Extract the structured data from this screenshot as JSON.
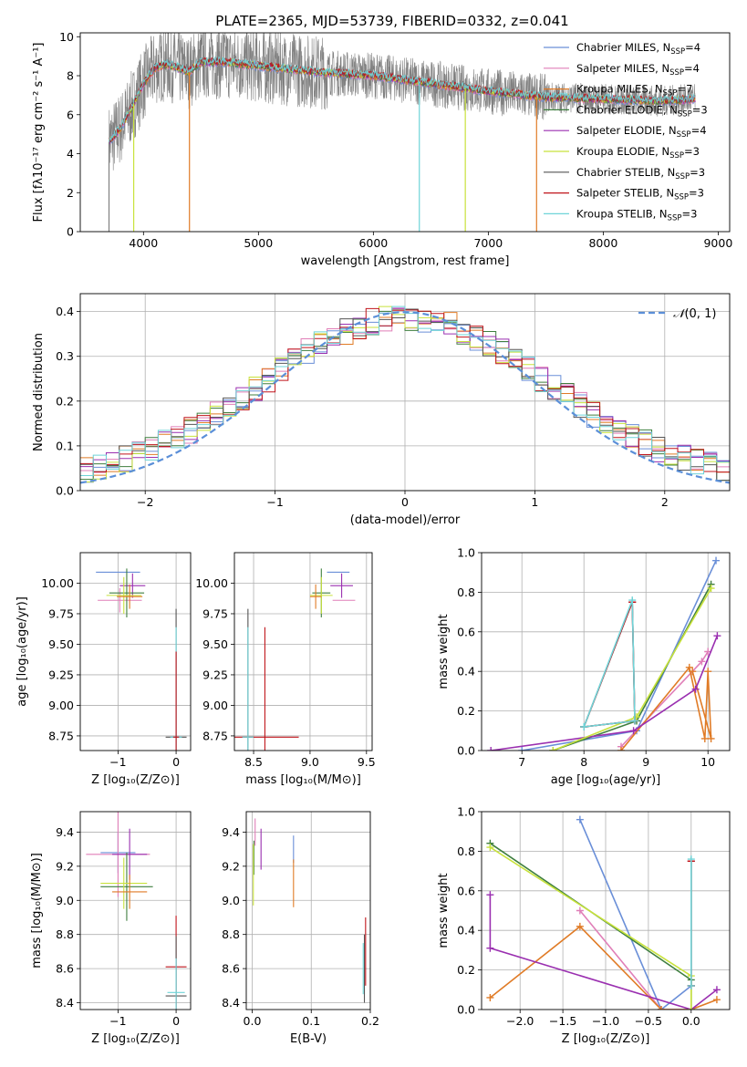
{
  "figure": {
    "title": "PLATE=2365, MJD=53739, FIBERID=0332, z=0.041"
  },
  "series_styles": [
    {
      "name": "Chabrier MILES, N$_{SSP}$=4",
      "label_main": "Chabrier MILES, N",
      "label_sub": "SSP",
      "label_tail": "=4",
      "color": "#6a8fd8"
    },
    {
      "name": "Salpeter MILES, N$_{SSP}$=4",
      "label_main": "Salpeter MILES, N",
      "label_sub": "SSP",
      "label_tail": "=4",
      "color": "#e07fb8"
    },
    {
      "name": "Kroupa MILES, N$_{SSP}$=7",
      "label_main": "Kroupa MILES, N",
      "label_sub": "SSP",
      "label_tail": "=7",
      "color": "#e07b26"
    },
    {
      "name": "Chabrier ELODIE, N$_{SSP}$=3",
      "label_main": "Chabrier ELODIE, N",
      "label_sub": "SSP",
      "label_tail": "=3",
      "color": "#3f7f3f"
    },
    {
      "name": "Salpeter ELODIE, N$_{SSP}$=4",
      "label_main": "Salpeter ELODIE, N",
      "label_sub": "SSP",
      "label_tail": "=4",
      "color": "#9a2fb0"
    },
    {
      "name": "Kroupa ELODIE, N$_{SSP}$=3",
      "label_main": "Kroupa ELODIE, N",
      "label_sub": "SSP",
      "label_tail": "=3",
      "color": "#c8e23c"
    },
    {
      "name": "Chabrier STELIB, N$_{SSP}$=3",
      "label_main": "Chabrier STELIB, N",
      "label_sub": "SSP",
      "label_tail": "=3",
      "color": "#555555"
    },
    {
      "name": "Salpeter STELIB, N$_{SSP}$=3",
      "label_main": "Salpeter STELIB, N",
      "label_sub": "SSP",
      "label_tail": "=3",
      "color": "#c0141b"
    },
    {
      "name": "Kroupa STELIB, N$_{SSP}$=3",
      "label_main": "Kroupa STELIB, N",
      "label_sub": "SSP",
      "label_tail": "=3",
      "color": "#6fd4d8"
    }
  ],
  "chart_data": [
    {
      "id": "spectrum",
      "type": "line",
      "xlabel": "wavelength [Angstrom, rest frame]",
      "ylabel": "Flux [f$_\\lambda$10$^{-17}$ erg cm$^{-2}$ s$^{-1}$ A$^{-1}$]",
      "xlim": [
        3450,
        9100
      ],
      "ylim": [
        0,
        10.2
      ],
      "xticks": [
        4000,
        5000,
        6000,
        7000,
        8000,
        9000
      ],
      "yticks": [
        0,
        2,
        4,
        6,
        8,
        10
      ],
      "data_color": "#808080",
      "data_range": [
        3700,
        8800
      ],
      "model_continuum": {
        "x": [
          3700,
          3800,
          3900,
          4000,
          4100,
          4200,
          4300,
          4400,
          4500,
          4700,
          5000,
          5500,
          6000,
          6500,
          7000,
          7500,
          8000,
          8500,
          8800
        ],
        "y": [
          4.6,
          5.3,
          6.4,
          7.6,
          8.4,
          8.6,
          8.4,
          8.2,
          8.7,
          8.7,
          8.5,
          8.2,
          8.0,
          7.6,
          7.2,
          6.9,
          6.8,
          6.7,
          6.8
        ]
      },
      "dips": [
        {
          "x": 3915,
          "y": 0.0,
          "color": "#c8e23c"
        },
        {
          "x": 4400,
          "y": 0.0,
          "color": "#e07b26"
        },
        {
          "x": 6400,
          "y": 0.0,
          "color": "#6fd4d8"
        },
        {
          "x": 6800,
          "y": 0.0,
          "color": "#c8e23c"
        },
        {
          "x": 7420,
          "y": 0.0,
          "color": "#e07b26"
        },
        {
          "x": 3700,
          "y": 0.0,
          "color": "#808080"
        }
      ]
    },
    {
      "id": "residuals",
      "type": "line",
      "xlabel": "(data-model)/error",
      "ylabel": "Normed distribution",
      "xlim": [
        -2.5,
        2.5
      ],
      "ylim": [
        0,
        0.44
      ],
      "xticks": [
        -2,
        -1,
        0,
        1,
        2
      ],
      "xtick_labels": [
        "−2",
        "−1",
        "0",
        "1",
        "2"
      ],
      "yticks": [
        0.0,
        0.1,
        0.2,
        0.3,
        0.4
      ],
      "ytick_labels": [
        "0.0",
        "0.1",
        "0.2",
        "0.3",
        "0.4"
      ],
      "reference_label": "$\\mathcal{N}(0,1)$",
      "reference_text": "(0, 1)",
      "reference_color": "#5b8fd8",
      "bins": [
        -2.5,
        2.5,
        50
      ]
    },
    {
      "id": "age_vs_Z",
      "type": "scatter",
      "xlabel": "Z [log$_{10}$(Z/Z$_\\odot$)]",
      "ylabel": "age  [log$_{10}$(age/yr)]",
      "xlim": [
        -1.65,
        0.25
      ],
      "ylim": [
        8.63,
        10.25
      ],
      "xticks": [
        -1,
        0
      ],
      "xtick_labels": [
        "−1",
        "0"
      ],
      "yticks": [
        8.75,
        9.0,
        9.25,
        9.5,
        9.75,
        10.0
      ],
      "ytick_labels": [
        "8.75",
        "9.00",
        "9.25",
        "9.50",
        "9.75",
        "10.00"
      ],
      "points": [
        {
          "x": -1.0,
          "y": 10.09,
          "xe": 0.38,
          "ye": 0.0,
          "s": 0
        },
        {
          "x": -0.97,
          "y": 9.86,
          "xe": 0.38,
          "ye": 0.1,
          "s": 1
        },
        {
          "x": -0.75,
          "y": 9.98,
          "xe": 0.22,
          "ye": 0.1,
          "s": 4
        },
        {
          "x": -0.85,
          "y": 9.92,
          "xe": 0.3,
          "ye": 0.2,
          "s": 3
        },
        {
          "x": -0.9,
          "y": 9.9,
          "xe": 0.3,
          "ye": 0.15,
          "s": 5
        },
        {
          "x": -0.8,
          "y": 9.89,
          "xe": 0.22,
          "ye": 0.1,
          "s": 2
        },
        {
          "x": 0.0,
          "y": 8.74,
          "xe": 0.18,
          "ye": 1.05,
          "s": 6
        },
        {
          "x": 0.0,
          "y": 8.74,
          "xe": 0.1,
          "ye": 0.9,
          "s": 8
        },
        {
          "x": 0.0,
          "y": 8.74,
          "xe": 0.05,
          "ye": 0.7,
          "s": 7
        }
      ]
    },
    {
      "id": "age_vs_mass",
      "type": "scatter",
      "xlabel": "mass [log$_{10}$(M/M$_\\odot$)]",
      "ylabel": "",
      "xlim": [
        8.33,
        9.55
      ],
      "ylim": [
        8.63,
        10.25
      ],
      "xticks": [
        8.5,
        9.0,
        9.5
      ],
      "xtick_labels": [
        "8.5",
        "9.0",
        "9.5"
      ],
      "yticks": [
        8.75,
        9.0,
        9.25,
        9.5,
        9.75,
        10.0
      ],
      "ytick_labels": [
        "8.75",
        "9.00",
        "9.25",
        "9.50",
        "9.75",
        "10.00"
      ],
      "points": [
        {
          "x": 9.25,
          "y": 10.09,
          "xe": 0.1,
          "ye": 0.0,
          "s": 0
        },
        {
          "x": 9.3,
          "y": 9.86,
          "xe": 0.1,
          "ye": 0.0,
          "s": 1
        },
        {
          "x": 9.28,
          "y": 9.98,
          "xe": 0.1,
          "ye": 0.1,
          "s": 4
        },
        {
          "x": 9.1,
          "y": 9.92,
          "xe": 0.08,
          "ye": 0.2,
          "s": 3
        },
        {
          "x": 9.1,
          "y": 9.9,
          "xe": 0.1,
          "ye": 0.15,
          "s": 5
        },
        {
          "x": 9.05,
          "y": 9.89,
          "xe": 0.05,
          "ye": 0.1,
          "s": 2
        },
        {
          "x": 8.45,
          "y": 8.74,
          "xe": 0.05,
          "ye": 1.05,
          "s": 6
        },
        {
          "x": 8.6,
          "y": 8.74,
          "xe": 0.3,
          "ye": 0.9,
          "s": 7
        },
        {
          "x": 8.45,
          "y": 8.74,
          "xe": 0.05,
          "ye": 0.9,
          "s": 8
        }
      ]
    },
    {
      "id": "weight_vs_age",
      "type": "line",
      "xlabel": "age  [log$_{10}$(age/yr)]",
      "ylabel": "mass weight",
      "xlim": [
        6.35,
        10.35
      ],
      "ylim": [
        0,
        1.0
      ],
      "xticks": [
        7,
        8,
        9,
        10
      ],
      "xtick_labels": [
        "7",
        "8",
        "9",
        "10"
      ],
      "yticks": [
        0.0,
        0.2,
        0.4,
        0.6,
        0.8,
        1.0
      ],
      "ytick_labels": [
        "0.0",
        "0.2",
        "0.4",
        "0.6",
        "0.8",
        "1.0"
      ],
      "series": [
        {
          "s": 0,
          "x": [
            7.0,
            8.85,
            10.13
          ],
          "y": [
            0.0,
            0.1,
            0.96
          ]
        },
        {
          "s": 1,
          "x": [
            8.6,
            9.9,
            10.0
          ],
          "y": [
            0.02,
            0.45,
            0.5
          ]
        },
        {
          "s": 2,
          "x": [
            8.6,
            9.7,
            9.95,
            10.0,
            10.05,
            9.75
          ],
          "y": [
            0.0,
            0.42,
            0.06,
            0.4,
            0.06,
            0.4
          ]
        },
        {
          "s": 3,
          "x": [
            7.5,
            8.85,
            10.05
          ],
          "y": [
            0.0,
            0.15,
            0.84
          ]
        },
        {
          "s": 4,
          "x": [
            6.5,
            8.8,
            9.8,
            10.15
          ],
          "y": [
            0.0,
            0.1,
            0.31,
            0.58
          ]
        },
        {
          "s": 5,
          "x": [
            7.5,
            8.85,
            10.05
          ],
          "y": [
            0.0,
            0.17,
            0.82
          ]
        },
        {
          "s": 6,
          "x": [
            8.0,
            8.78,
            8.82,
            8.0
          ],
          "y": [
            0.12,
            0.75,
            0.15,
            0.12
          ]
        },
        {
          "s": 7,
          "x": [
            8.0,
            8.78,
            8.82,
            8.0
          ],
          "y": [
            0.12,
            0.75,
            0.15,
            0.12
          ]
        },
        {
          "s": 8,
          "x": [
            8.0,
            8.78,
            8.82,
            8.0
          ],
          "y": [
            0.12,
            0.76,
            0.15,
            0.12
          ]
        }
      ]
    },
    {
      "id": "mass_vs_Z",
      "type": "scatter",
      "xlabel": "Z [log$_{10}$(Z/Z$_\\odot$)]",
      "ylabel": "mass [log$_{10}$(M/M$_\\odot$)]",
      "xlim": [
        -1.65,
        0.25
      ],
      "ylim": [
        8.36,
        9.52
      ],
      "xticks": [
        -1,
        0
      ],
      "xtick_labels": [
        "−1",
        "0"
      ],
      "yticks": [
        8.4,
        8.6,
        8.8,
        9.0,
        9.2,
        9.4
      ],
      "ytick_labels": [
        "8.4",
        "8.6",
        "8.8",
        "9.0",
        "9.2",
        "9.4"
      ],
      "points": [
        {
          "x": -1.0,
          "y": 9.28,
          "xe": 0.3,
          "ye": 0.12,
          "s": 0
        },
        {
          "x": -1.0,
          "y": 9.27,
          "xe": 0.55,
          "ye": 0.25,
          "s": 1
        },
        {
          "x": -0.8,
          "y": 9.27,
          "xe": 0.3,
          "ye": 0.15,
          "s": 4
        },
        {
          "x": -0.85,
          "y": 9.08,
          "xe": 0.45,
          "ye": 0.2,
          "s": 3
        },
        {
          "x": -0.9,
          "y": 9.1,
          "xe": 0.4,
          "ye": 0.15,
          "s": 5
        },
        {
          "x": -0.8,
          "y": 9.05,
          "xe": 0.3,
          "ye": 0.1,
          "s": 2
        },
        {
          "x": 0.0,
          "y": 8.61,
          "xe": 0.18,
          "ye": 0.3,
          "s": 7
        },
        {
          "x": 0.0,
          "y": 8.44,
          "xe": 0.18,
          "ye": 0.35,
          "s": 6
        },
        {
          "x": 0.0,
          "y": 8.46,
          "xe": 0.15,
          "ye": 0.2,
          "s": 8
        }
      ]
    },
    {
      "id": "mass_vs_EBV",
      "type": "scatter",
      "xlabel": "E(B-V)",
      "ylabel": "",
      "xlim": [
        -0.01,
        0.2
      ],
      "ylim": [
        8.36,
        9.52
      ],
      "xticks": [
        0.0,
        0.1,
        0.2
      ],
      "xtick_labels": [
        "0.0",
        "0.1",
        "0.2"
      ],
      "yticks": [
        8.4,
        8.6,
        8.8,
        9.0,
        9.2,
        9.4
      ],
      "ytick_labels": [
        "8.4",
        "8.6",
        "8.8",
        "9.0",
        "9.2",
        "9.4"
      ],
      "points": [
        {
          "x": 0.07,
          "y": 9.3,
          "xe": 0,
          "ye": 0.08,
          "s": 0
        },
        {
          "x": 0.005,
          "y": 9.4,
          "xe": 0,
          "ye": 0.08,
          "s": 1
        },
        {
          "x": 0.07,
          "y": 9.1,
          "xe": 0,
          "ye": 0.14,
          "s": 2
        },
        {
          "x": 0.003,
          "y": 9.25,
          "xe": 0,
          "ye": 0.1,
          "s": 3
        },
        {
          "x": 0.015,
          "y": 9.3,
          "xe": 0,
          "ye": 0.12,
          "s": 4
        },
        {
          "x": 0.002,
          "y": 9.15,
          "xe": 0,
          "ye": 0.18,
          "s": 5
        },
        {
          "x": 0.19,
          "y": 8.6,
          "xe": 0,
          "ye": 0.2,
          "s": 6
        },
        {
          "x": 0.192,
          "y": 8.7,
          "xe": 0,
          "ye": 0.2,
          "s": 7
        },
        {
          "x": 0.188,
          "y": 8.6,
          "xe": 0,
          "ye": 0.15,
          "s": 8
        }
      ]
    },
    {
      "id": "weight_vs_Z",
      "type": "line",
      "xlabel": "Z [log$_{10}$(Z/Z$_\\odot$)]",
      "ylabel": "mass weight",
      "xlim": [
        -2.45,
        0.45
      ],
      "ylim": [
        0,
        1.0
      ],
      "xticks": [
        -2.0,
        -1.5,
        -1.0,
        -0.5,
        0.0
      ],
      "xtick_labels": [
        "−2.0",
        "−1.5",
        "−1.0",
        "−0.5",
        "0.0"
      ],
      "yticks": [
        0.0,
        0.2,
        0.4,
        0.6,
        0.8,
        1.0
      ],
      "ytick_labels": [
        "0.0",
        "0.2",
        "0.4",
        "0.6",
        "0.8",
        "1.0"
      ],
      "series": [
        {
          "s": 0,
          "x": [
            -1.3,
            -0.35,
            0.0
          ],
          "y": [
            0.96,
            0.0,
            0.12
          ]
        },
        {
          "s": 1,
          "x": [
            -1.3,
            -0.35,
            0.0
          ],
          "y": [
            0.5,
            0.0,
            0.0
          ]
        },
        {
          "s": 2,
          "x": [
            -2.35,
            -1.3,
            -0.35,
            0.0,
            0.3
          ],
          "y": [
            0.06,
            0.42,
            0.0,
            0.0,
            0.05
          ]
        },
        {
          "s": 3,
          "x": [
            -2.35,
            0.0,
            0.0
          ],
          "y": [
            0.84,
            0.15,
            0.0
          ]
        },
        {
          "s": 4,
          "x": [
            -2.35,
            -2.35,
            0.0,
            0.3
          ],
          "y": [
            0.58,
            0.31,
            0.0,
            0.1
          ]
        },
        {
          "s": 5,
          "x": [
            -2.35,
            0.0,
            0.0
          ],
          "y": [
            0.82,
            0.17,
            0.0
          ]
        },
        {
          "s": 6,
          "x": [
            0.0,
            0.0
          ],
          "y": [
            0.12,
            0.75
          ]
        },
        {
          "s": 7,
          "x": [
            0.0,
            0.0
          ],
          "y": [
            0.12,
            0.75
          ]
        },
        {
          "s": 8,
          "x": [
            0.0,
            0.0
          ],
          "y": [
            0.12,
            0.76
          ]
        }
      ]
    }
  ]
}
